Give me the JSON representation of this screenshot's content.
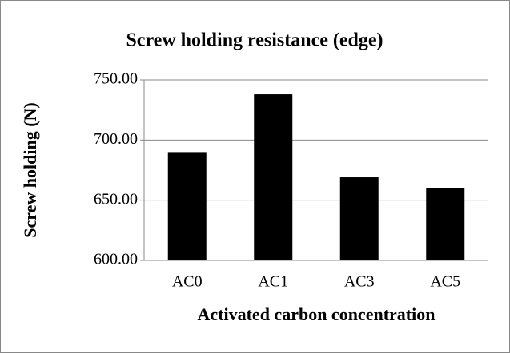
{
  "chart_data": {
    "type": "bar",
    "title": "Screw holding resistance (edge)",
    "x_label": "Activated carbon concentration",
    "y_label": "Screw holding (N)",
    "categories": [
      "AC0",
      "AC1",
      "AC3",
      "AC5"
    ],
    "values": [
      690,
      738,
      669,
      660
    ],
    "color": "#000000",
    "ylim": [
      600,
      750
    ],
    "yticks": [
      {
        "value": 600,
        "label": "600.00"
      },
      {
        "value": 650,
        "label": "650.00"
      },
      {
        "value": 700,
        "label": "700.00"
      },
      {
        "value": 750,
        "label": "750.00"
      }
    ],
    "grid": true
  }
}
